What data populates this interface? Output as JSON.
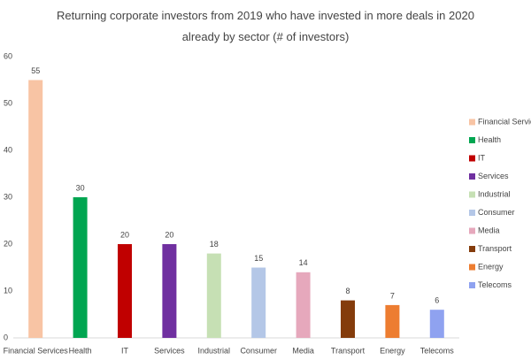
{
  "chart_data": {
    "type": "bar",
    "title": "Returning corporate investors from 2019 who have invested in more deals in 2020 already by sector (# of investors)",
    "categories": [
      "Financial Services",
      "Health",
      "IT",
      "Services",
      "Industrial",
      "Consumer",
      "Media",
      "Transport",
      "Energy",
      "Telecoms"
    ],
    "values": [
      55,
      30,
      20,
      20,
      18,
      15,
      14,
      8,
      7,
      6
    ],
    "colors": [
      "#f8c4a4",
      "#00a651",
      "#c00000",
      "#7030a0",
      "#c6e0b4",
      "#b4c7e7",
      "#e6a8bc",
      "#843c0c",
      "#ed7d31",
      "#8fa2f0"
    ],
    "ylim": [
      0,
      60
    ],
    "yticks": [
      0,
      10,
      20,
      30,
      40,
      50,
      60
    ],
    "grid": false,
    "legend": "right"
  }
}
